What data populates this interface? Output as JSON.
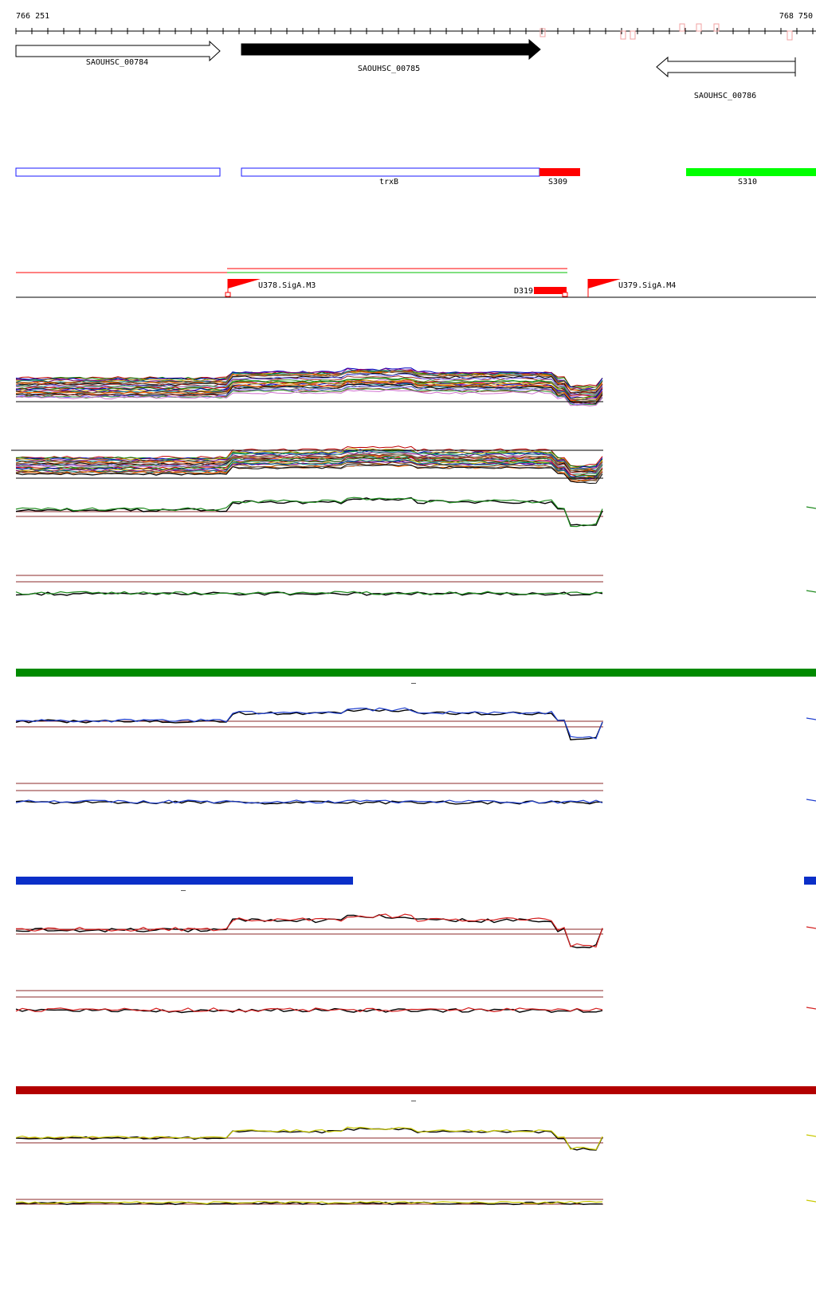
{
  "coordinates": {
    "start": "766 251",
    "end": "768 750"
  },
  "genes": [
    {
      "id": "SAOUHSC_00784",
      "strand": "+",
      "fill": "#ffffff"
    },
    {
      "id": "SAOUHSC_00785",
      "strand": "+",
      "fill": "#000000"
    },
    {
      "id": "SAOUHSC_00786",
      "strand": "-",
      "fill": "#ffffff"
    }
  ],
  "annotations": [
    {
      "label": "",
      "color": "#1a1aff",
      "kind": "outline"
    },
    {
      "label": "trxB",
      "color": "#1a1aff",
      "kind": "outline"
    },
    {
      "label": "S309",
      "color": "#ff0000",
      "kind": "filled"
    },
    {
      "label": "S310",
      "color": "#00ff00",
      "kind": "filled"
    }
  ],
  "promoters": [
    {
      "label": "U378.SigA.M3",
      "color": "#ff0000"
    },
    {
      "label": "U379.SigA.M4",
      "color": "#ff0000"
    }
  ],
  "terminators": [
    {
      "label": "D319",
      "color": "#ff0000"
    }
  ],
  "condition_bars": [
    {
      "color": "#008a00",
      "marker": "–"
    },
    {
      "color": "#0b2fc8",
      "marker": "–"
    },
    {
      "color": "#b30000",
      "marker": "–"
    }
  ],
  "track_colors": {
    "green": "#1e8a1e",
    "blue": "#1f3fcf",
    "red": "#d42020",
    "yellow": "#c8c800",
    "threshold": "#8b2a2a"
  }
}
